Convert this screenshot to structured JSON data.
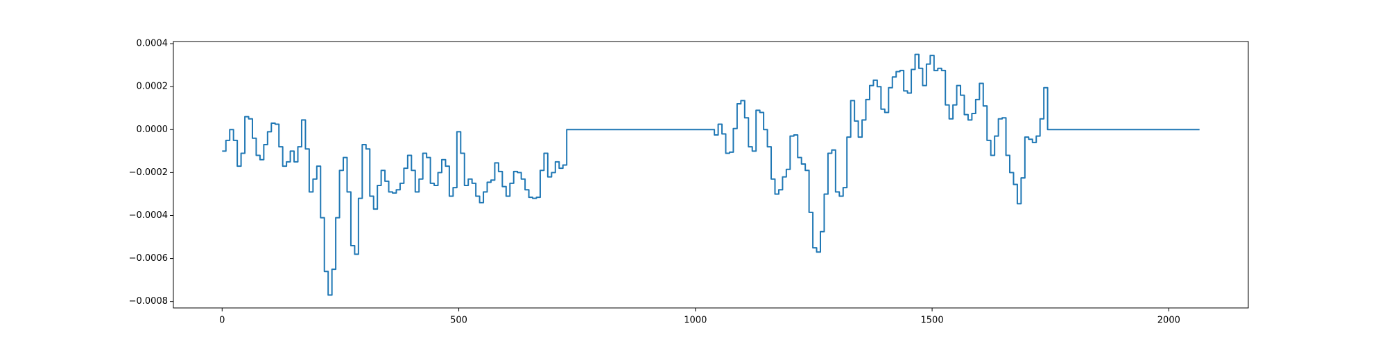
{
  "chart_data": {
    "type": "line",
    "step": "post",
    "color": "#1f77b4",
    "x": [
      0,
      8,
      16,
      24,
      32,
      40,
      48,
      56,
      64,
      72,
      80,
      88,
      96,
      104,
      112,
      120,
      128,
      136,
      144,
      152,
      160,
      168,
      176,
      184,
      192,
      200,
      208,
      216,
      224,
      232,
      240,
      248,
      256,
      264,
      272,
      280,
      288,
      296,
      304,
      312,
      320,
      328,
      336,
      344,
      352,
      360,
      368,
      376,
      384,
      392,
      400,
      408,
      416,
      424,
      432,
      440,
      448,
      456,
      464,
      472,
      480,
      488,
      496,
      504,
      512,
      520,
      528,
      536,
      544,
      552,
      560,
      568,
      576,
      584,
      592,
      600,
      608,
      616,
      624,
      632,
      640,
      648,
      656,
      664,
      672,
      680,
      688,
      696,
      704,
      712,
      720,
      728,
      1040,
      1048,
      1056,
      1064,
      1072,
      1080,
      1088,
      1096,
      1104,
      1112,
      1120,
      1128,
      1136,
      1144,
      1152,
      1160,
      1168,
      1176,
      1184,
      1192,
      1200,
      1208,
      1216,
      1224,
      1232,
      1240,
      1248,
      1256,
      1264,
      1272,
      1280,
      1288,
      1296,
      1304,
      1312,
      1320,
      1328,
      1336,
      1344,
      1352,
      1360,
      1368,
      1376,
      1384,
      1392,
      1400,
      1408,
      1416,
      1424,
      1432,
      1440,
      1448,
      1456,
      1464,
      1472,
      1480,
      1488,
      1496,
      1504,
      1512,
      1520,
      1528,
      1536,
      1544,
      1552,
      1560,
      1568,
      1576,
      1584,
      1592,
      1600,
      1608,
      1616,
      1624,
      1632,
      1640,
      1648,
      1656,
      1664,
      1672,
      1680,
      1688,
      1696,
      1704,
      1712,
      1720,
      1728,
      1736,
      1744,
      2065
    ],
    "values": [
      -0.0001,
      -5e-05,
      0.0,
      -5e-05,
      -0.00017,
      -0.00011,
      6e-05,
      5e-05,
      -4e-05,
      -0.00012,
      -0.00014,
      -7e-05,
      -1e-05,
      3e-05,
      2.5e-05,
      -8e-05,
      -0.00017,
      -0.00015,
      -0.0001,
      -0.00015,
      -8e-05,
      4.5e-05,
      -9e-05,
      -0.00029,
      -0.00023,
      -0.00017,
      -0.00041,
      -0.00066,
      -0.00077,
      -0.00065,
      -0.00041,
      -0.00019,
      -0.00013,
      -0.00029,
      -0.00054,
      -0.00058,
      -0.00032,
      -7e-05,
      -9e-05,
      -0.00031,
      -0.00037,
      -0.00026,
      -0.00019,
      -0.00024,
      -0.00029,
      -0.000295,
      -0.00028,
      -0.00025,
      -0.00018,
      -0.00012,
      -0.00019,
      -0.00029,
      -0.00023,
      -0.00011,
      -0.00013,
      -0.00025,
      -0.00026,
      -0.0002,
      -0.00014,
      -0.00017,
      -0.00031,
      -0.00027,
      -1e-05,
      -0.00011,
      -0.00026,
      -0.00023,
      -0.00025,
      -0.00031,
      -0.00034,
      -0.00029,
      -0.000245,
      -0.000235,
      -0.000155,
      -0.000195,
      -0.000265,
      -0.00031,
      -0.00025,
      -0.000195,
      -0.0002,
      -0.00023,
      -0.00028,
      -0.000315,
      -0.00032,
      -0.000315,
      -0.00019,
      -0.00011,
      -0.00022,
      -0.0002,
      -0.00015,
      -0.00018,
      -0.000165,
      0.0,
      -2.5e-05,
      2.5e-05,
      -2e-05,
      -0.00011,
      -0.000105,
      5e-06,
      0.00012,
      0.000135,
      5.5e-05,
      -8e-05,
      -0.0001,
      9e-05,
      8e-05,
      0.0,
      -8e-05,
      -0.00023,
      -0.0003,
      -0.00028,
      -0.00022,
      -0.000185,
      -3e-05,
      -2.5e-05,
      -0.00013,
      -0.00016,
      -0.00019,
      -0.000385,
      -0.00055,
      -0.00057,
      -0.000475,
      -0.0003,
      -0.00011,
      -9.5e-05,
      -0.00029,
      -0.00031,
      -0.00027,
      -3.5e-05,
      0.000135,
      4e-05,
      -3.5e-05,
      4.5e-05,
      0.00014,
      0.000205,
      0.00023,
      0.0002,
      9.5e-05,
      8e-05,
      0.000195,
      0.000245,
      0.00027,
      0.000275,
      0.00018,
      0.00017,
      0.00028,
      0.00035,
      0.000285,
      0.000205,
      0.000305,
      0.000345,
      0.000275,
      0.000285,
      0.000275,
      0.000115,
      5e-05,
      0.000115,
      0.000205,
      0.00016,
      7e-05,
      4.5e-05,
      7.5e-05,
      0.00014,
      0.000215,
      0.00011,
      -5e-05,
      -0.00012,
      -3e-05,
      5e-05,
      5.5e-05,
      -0.00012,
      -0.0002,
      -0.000255,
      -0.000345,
      -0.000225,
      -3.5e-05,
      -4.5e-05,
      -6e-05,
      -3e-05,
      5e-05,
      0.000195,
      0.0,
      0.0
    ],
    "xlim": [
      -103,
      2168
    ],
    "xticks": [
      0,
      500,
      1000,
      1500,
      2000
    ],
    "ylim": [
      -0.00083,
      0.00041
    ],
    "yticks": [
      {
        "value": 0.0004,
        "label": "0.0004"
      },
      {
        "value": 0.0002,
        "label": "0.0002"
      },
      {
        "value": 0,
        "label": "0.0000"
      },
      {
        "value": -0.0002,
        "label": "−0.0002"
      },
      {
        "value": -0.0004,
        "label": "−0.0004"
      },
      {
        "value": -0.0006,
        "label": "−0.0006"
      },
      {
        "value": -0.0008,
        "label": "−0.0008"
      }
    ]
  }
}
